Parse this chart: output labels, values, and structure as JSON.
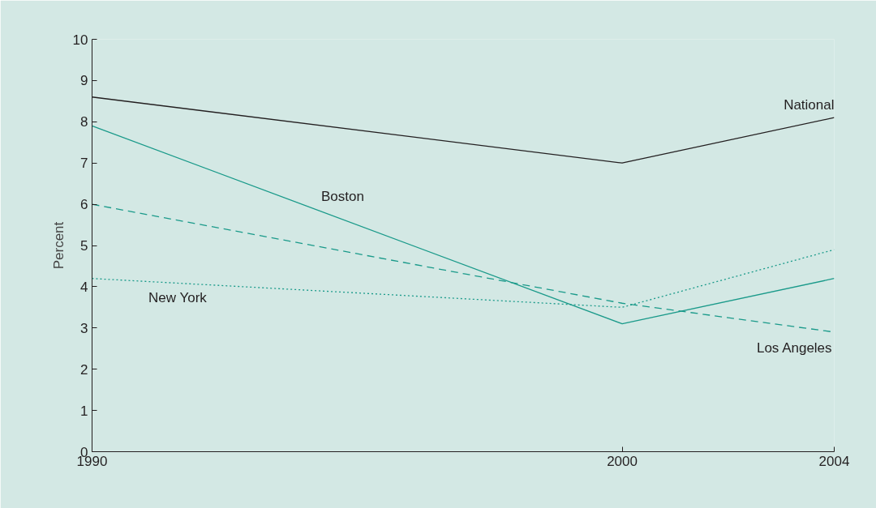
{
  "chart_data": {
    "type": "line",
    "ylabel": "Percent",
    "x": [
      1990,
      2000,
      2004
    ],
    "series": [
      {
        "name": "National",
        "color": "#231f20",
        "line_style": "solid",
        "values": [
          8.6,
          7.0,
          8.1
        ]
      },
      {
        "name": "Boston",
        "color": "#1a9a8a",
        "line_style": "solid",
        "values": [
          7.9,
          3.1,
          4.2
        ]
      },
      {
        "name": "Los Angeles",
        "color": "#1a9a8a",
        "line_style": "dashed",
        "values": [
          6.0,
          3.6,
          2.9
        ]
      },
      {
        "name": "New York",
        "color": "#1a9a8a",
        "line_style": "dotted",
        "values": [
          4.2,
          3.5,
          4.9
        ]
      }
    ],
    "xlim": [
      1990,
      2004
    ],
    "ylim": [
      0,
      10
    ],
    "xticks": [
      1990,
      2000,
      2004
    ],
    "yticks": [
      0,
      1,
      2,
      3,
      4,
      5,
      6,
      7,
      8,
      9,
      10
    ],
    "grid": false,
    "marker": "none"
  }
}
